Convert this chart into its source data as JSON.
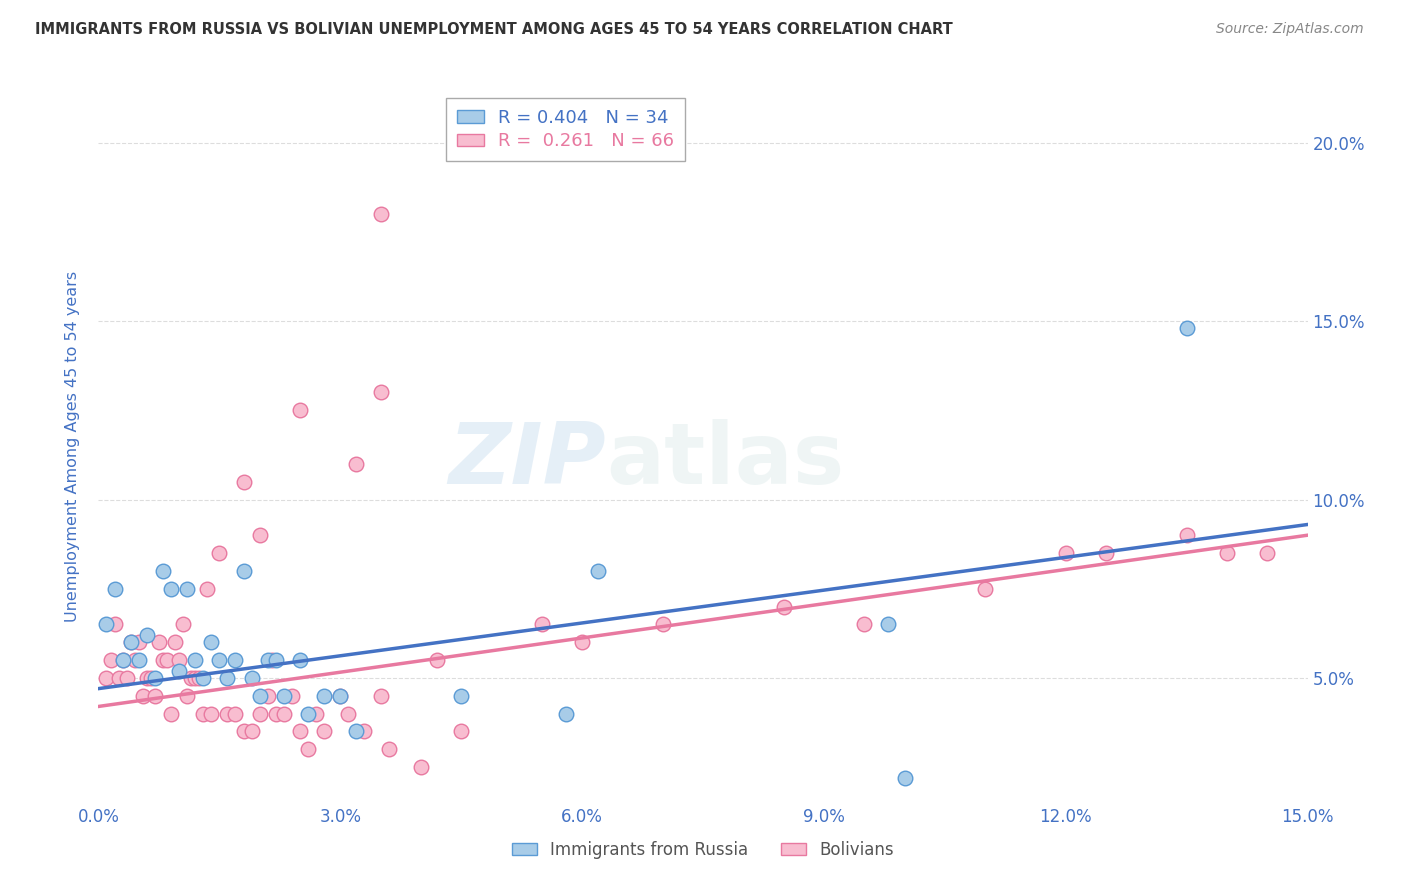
{
  "title": "IMMIGRANTS FROM RUSSIA VS BOLIVIAN UNEMPLOYMENT AMONG AGES 45 TO 54 YEARS CORRELATION CHART",
  "source": "Source: ZipAtlas.com",
  "ylabel_left": "Unemployment Among Ages 45 to 54 years",
  "xlim": [
    0.0,
    15.0
  ],
  "ylim": [
    1.5,
    21.5
  ],
  "xlabel_vals": [
    0.0,
    3.0,
    6.0,
    9.0,
    12.0,
    15.0
  ],
  "ylabel_right_vals": [
    5.0,
    10.0,
    15.0,
    20.0
  ],
  "legend_blue": {
    "R": "0.404",
    "N": "34",
    "label": "Immigrants from Russia"
  },
  "legend_pink": {
    "R": "0.261",
    "N": "66",
    "label": "Bolivians"
  },
  "blue_color": "#a8cce8",
  "blue_edge": "#5b9bd5",
  "pink_color": "#f8bdd0",
  "pink_edge": "#e879a0",
  "blue_line": "#4472c4",
  "pink_line": "#e879a0",
  "title_color": "#333333",
  "source_color": "#888888",
  "tick_color": "#4472c4",
  "ylabel_color": "#4472c4",
  "grid_color": "#dddddd",
  "watermark": "ZIPatlas",
  "blue_x": [
    0.1,
    0.2,
    0.3,
    0.4,
    0.5,
    0.6,
    0.7,
    0.8,
    0.9,
    1.0,
    1.1,
    1.2,
    1.3,
    1.4,
    1.5,
    1.6,
    1.7,
    1.8,
    1.9,
    2.0,
    2.1,
    2.2,
    2.3,
    2.5,
    2.6,
    2.8,
    3.0,
    3.2,
    4.5,
    5.8,
    6.2,
    9.8,
    13.5,
    10.0
  ],
  "blue_y": [
    6.5,
    7.5,
    5.5,
    6.0,
    5.5,
    6.2,
    5.0,
    8.0,
    7.5,
    5.2,
    7.5,
    5.5,
    5.0,
    6.0,
    5.5,
    5.0,
    5.5,
    8.0,
    5.0,
    4.5,
    5.5,
    5.5,
    4.5,
    5.5,
    4.0,
    4.5,
    4.5,
    3.5,
    4.5,
    4.0,
    8.0,
    6.5,
    14.8,
    2.2
  ],
  "pink_x": [
    0.1,
    0.15,
    0.2,
    0.25,
    0.3,
    0.35,
    0.4,
    0.45,
    0.5,
    0.55,
    0.6,
    0.65,
    0.7,
    0.75,
    0.8,
    0.85,
    0.9,
    0.95,
    1.0,
    1.05,
    1.1,
    1.15,
    1.2,
    1.25,
    1.3,
    1.35,
    1.4,
    1.5,
    1.6,
    1.7,
    1.8,
    1.9,
    2.0,
    2.1,
    2.15,
    2.2,
    2.3,
    2.4,
    2.5,
    2.6,
    2.7,
    2.8,
    3.0,
    3.1,
    3.3,
    3.5,
    3.6,
    4.0,
    4.5,
    5.5,
    6.0,
    7.0,
    8.5,
    9.5,
    11.0,
    12.0,
    12.5,
    13.5,
    14.0,
    14.5,
    3.5,
    2.5,
    1.8,
    2.0,
    4.2,
    3.2
  ],
  "pink_y": [
    5.0,
    5.5,
    6.5,
    5.0,
    5.5,
    5.0,
    6.0,
    5.5,
    6.0,
    4.5,
    5.0,
    5.0,
    4.5,
    6.0,
    5.5,
    5.5,
    4.0,
    6.0,
    5.5,
    6.5,
    4.5,
    5.0,
    5.0,
    5.0,
    4.0,
    7.5,
    4.0,
    8.5,
    4.0,
    4.0,
    3.5,
    3.5,
    4.0,
    4.5,
    5.5,
    4.0,
    4.0,
    4.5,
    3.5,
    3.0,
    4.0,
    3.5,
    4.5,
    4.0,
    3.5,
    4.5,
    3.0,
    2.5,
    3.5,
    6.5,
    6.0,
    6.5,
    7.0,
    6.5,
    7.5,
    8.5,
    8.5,
    9.0,
    8.5,
    8.5,
    13.0,
    12.5,
    10.5,
    9.0,
    5.5,
    11.0
  ],
  "pink_outlier_x": [
    3.5
  ],
  "pink_outlier_y": [
    18.0
  ],
  "blue_trend_x": [
    0.0,
    15.0
  ],
  "blue_trend_y": [
    4.7,
    9.3
  ],
  "pink_trend_x": [
    0.0,
    15.0
  ],
  "pink_trend_y": [
    4.2,
    9.0
  ]
}
